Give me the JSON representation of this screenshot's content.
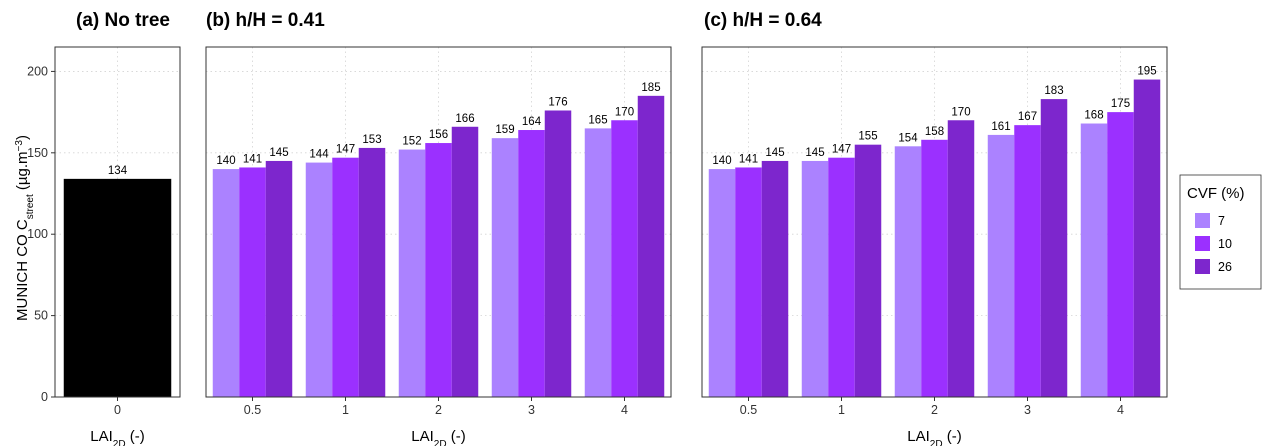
{
  "colors": {
    "no_tree": "#000000",
    "cvf_7": "#ab82ff",
    "cvf_10": "#9b30ff",
    "cvf_26": "#7d26cd"
  },
  "y_axis": {
    "label_main": "MUNICH CO C",
    "label_sub": "street",
    "label_unit_open": " (µg.m",
    "label_sup": "−3",
    "label_unit_close": ")",
    "ylim": [
      0,
      215
    ],
    "ticks": [
      0,
      50,
      100,
      150,
      200
    ]
  },
  "x_axis": {
    "label_main": "LAI",
    "label_sub": "2D",
    "label_rest": " (-)"
  },
  "legend": {
    "title": "CVF (%)",
    "items": [
      {
        "label": "7",
        "color": "#ab82ff"
      },
      {
        "label": "10",
        "color": "#9b30ff"
      },
      {
        "label": "26",
        "color": "#7d26cd"
      }
    ]
  },
  "chart_data": [
    {
      "type": "bar",
      "title": "(a) No tree",
      "categories": [
        "0"
      ],
      "series": [
        {
          "values": [
            134
          ]
        }
      ],
      "ylim": [
        0,
        215
      ]
    },
    {
      "type": "bar",
      "title": "(b) h/H = 0.41",
      "categories": [
        "0.5",
        "1",
        "2",
        "3",
        "4"
      ],
      "series": [
        {
          "name": "7",
          "values": [
            140,
            144,
            152,
            159,
            165
          ]
        },
        {
          "name": "10",
          "values": [
            141,
            147,
            156,
            164,
            170
          ]
        },
        {
          "name": "26",
          "values": [
            145,
            153,
            166,
            176,
            185
          ]
        }
      ],
      "ylim": [
        0,
        215
      ]
    },
    {
      "type": "bar",
      "title": "(c) h/H = 0.64",
      "categories": [
        "0.5",
        "1",
        "2",
        "3",
        "4"
      ],
      "series": [
        {
          "name": "7",
          "values": [
            140,
            145,
            154,
            161,
            168
          ]
        },
        {
          "name": "10",
          "values": [
            141,
            147,
            158,
            167,
            175
          ]
        },
        {
          "name": "26",
          "values": [
            145,
            155,
            170,
            183,
            195
          ]
        }
      ],
      "ylim": [
        0,
        215
      ]
    }
  ]
}
